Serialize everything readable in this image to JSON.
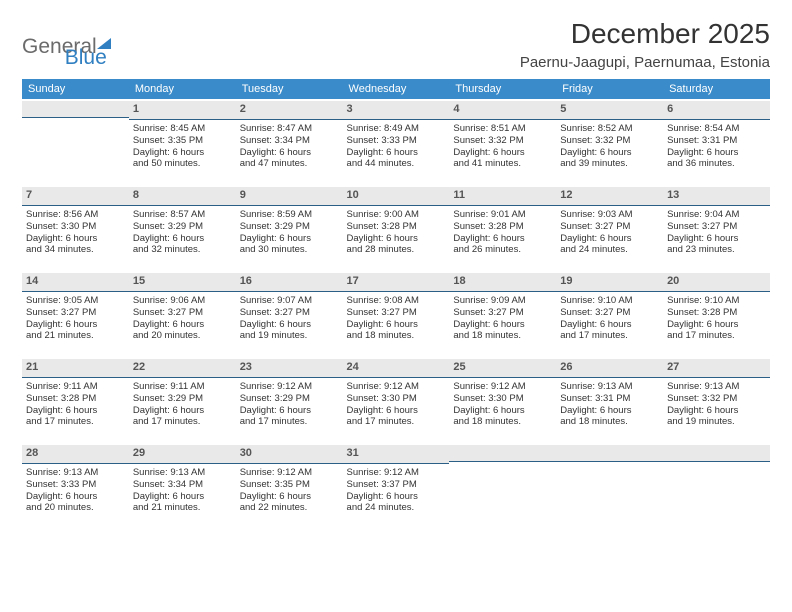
{
  "logo": {
    "part1": "General",
    "part2": "Blue"
  },
  "header": {
    "month": "December 2025",
    "location": "Paernu-Jaagupi, Paernumaa, Estonia"
  },
  "columns": [
    "Sunday",
    "Monday",
    "Tuesday",
    "Wednesday",
    "Thursday",
    "Friday",
    "Saturday"
  ],
  "colors": {
    "header_bg": "#3a8bc9",
    "header_text": "#ffffff",
    "daynum_bg": "#e9e9e9",
    "daynum_border": "#2b5f86",
    "logo_gray": "#6b6b6b",
    "logo_blue": "#2f7fc1",
    "text": "#333333",
    "bg": "#ffffff"
  },
  "weeks": [
    [
      {
        "empty": true
      },
      {
        "num": "1",
        "sunrise": "Sunrise: 8:45 AM",
        "sunset": "Sunset: 3:35 PM",
        "day1": "Daylight: 6 hours",
        "day2": "and 50 minutes."
      },
      {
        "num": "2",
        "sunrise": "Sunrise: 8:47 AM",
        "sunset": "Sunset: 3:34 PM",
        "day1": "Daylight: 6 hours",
        "day2": "and 47 minutes."
      },
      {
        "num": "3",
        "sunrise": "Sunrise: 8:49 AM",
        "sunset": "Sunset: 3:33 PM",
        "day1": "Daylight: 6 hours",
        "day2": "and 44 minutes."
      },
      {
        "num": "4",
        "sunrise": "Sunrise: 8:51 AM",
        "sunset": "Sunset: 3:32 PM",
        "day1": "Daylight: 6 hours",
        "day2": "and 41 minutes."
      },
      {
        "num": "5",
        "sunrise": "Sunrise: 8:52 AM",
        "sunset": "Sunset: 3:32 PM",
        "day1": "Daylight: 6 hours",
        "day2": "and 39 minutes."
      },
      {
        "num": "6",
        "sunrise": "Sunrise: 8:54 AM",
        "sunset": "Sunset: 3:31 PM",
        "day1": "Daylight: 6 hours",
        "day2": "and 36 minutes."
      }
    ],
    [
      {
        "num": "7",
        "sunrise": "Sunrise: 8:56 AM",
        "sunset": "Sunset: 3:30 PM",
        "day1": "Daylight: 6 hours",
        "day2": "and 34 minutes."
      },
      {
        "num": "8",
        "sunrise": "Sunrise: 8:57 AM",
        "sunset": "Sunset: 3:29 PM",
        "day1": "Daylight: 6 hours",
        "day2": "and 32 minutes."
      },
      {
        "num": "9",
        "sunrise": "Sunrise: 8:59 AM",
        "sunset": "Sunset: 3:29 PM",
        "day1": "Daylight: 6 hours",
        "day2": "and 30 minutes."
      },
      {
        "num": "10",
        "sunrise": "Sunrise: 9:00 AM",
        "sunset": "Sunset: 3:28 PM",
        "day1": "Daylight: 6 hours",
        "day2": "and 28 minutes."
      },
      {
        "num": "11",
        "sunrise": "Sunrise: 9:01 AM",
        "sunset": "Sunset: 3:28 PM",
        "day1": "Daylight: 6 hours",
        "day2": "and 26 minutes."
      },
      {
        "num": "12",
        "sunrise": "Sunrise: 9:03 AM",
        "sunset": "Sunset: 3:27 PM",
        "day1": "Daylight: 6 hours",
        "day2": "and 24 minutes."
      },
      {
        "num": "13",
        "sunrise": "Sunrise: 9:04 AM",
        "sunset": "Sunset: 3:27 PM",
        "day1": "Daylight: 6 hours",
        "day2": "and 23 minutes."
      }
    ],
    [
      {
        "num": "14",
        "sunrise": "Sunrise: 9:05 AM",
        "sunset": "Sunset: 3:27 PM",
        "day1": "Daylight: 6 hours",
        "day2": "and 21 minutes."
      },
      {
        "num": "15",
        "sunrise": "Sunrise: 9:06 AM",
        "sunset": "Sunset: 3:27 PM",
        "day1": "Daylight: 6 hours",
        "day2": "and 20 minutes."
      },
      {
        "num": "16",
        "sunrise": "Sunrise: 9:07 AM",
        "sunset": "Sunset: 3:27 PM",
        "day1": "Daylight: 6 hours",
        "day2": "and 19 minutes."
      },
      {
        "num": "17",
        "sunrise": "Sunrise: 9:08 AM",
        "sunset": "Sunset: 3:27 PM",
        "day1": "Daylight: 6 hours",
        "day2": "and 18 minutes."
      },
      {
        "num": "18",
        "sunrise": "Sunrise: 9:09 AM",
        "sunset": "Sunset: 3:27 PM",
        "day1": "Daylight: 6 hours",
        "day2": "and 18 minutes."
      },
      {
        "num": "19",
        "sunrise": "Sunrise: 9:10 AM",
        "sunset": "Sunset: 3:27 PM",
        "day1": "Daylight: 6 hours",
        "day2": "and 17 minutes."
      },
      {
        "num": "20",
        "sunrise": "Sunrise: 9:10 AM",
        "sunset": "Sunset: 3:28 PM",
        "day1": "Daylight: 6 hours",
        "day2": "and 17 minutes."
      }
    ],
    [
      {
        "num": "21",
        "sunrise": "Sunrise: 9:11 AM",
        "sunset": "Sunset: 3:28 PM",
        "day1": "Daylight: 6 hours",
        "day2": "and 17 minutes."
      },
      {
        "num": "22",
        "sunrise": "Sunrise: 9:11 AM",
        "sunset": "Sunset: 3:29 PM",
        "day1": "Daylight: 6 hours",
        "day2": "and 17 minutes."
      },
      {
        "num": "23",
        "sunrise": "Sunrise: 9:12 AM",
        "sunset": "Sunset: 3:29 PM",
        "day1": "Daylight: 6 hours",
        "day2": "and 17 minutes."
      },
      {
        "num": "24",
        "sunrise": "Sunrise: 9:12 AM",
        "sunset": "Sunset: 3:30 PM",
        "day1": "Daylight: 6 hours",
        "day2": "and 17 minutes."
      },
      {
        "num": "25",
        "sunrise": "Sunrise: 9:12 AM",
        "sunset": "Sunset: 3:30 PM",
        "day1": "Daylight: 6 hours",
        "day2": "and 18 minutes."
      },
      {
        "num": "26",
        "sunrise": "Sunrise: 9:13 AM",
        "sunset": "Sunset: 3:31 PM",
        "day1": "Daylight: 6 hours",
        "day2": "and 18 minutes."
      },
      {
        "num": "27",
        "sunrise": "Sunrise: 9:13 AM",
        "sunset": "Sunset: 3:32 PM",
        "day1": "Daylight: 6 hours",
        "day2": "and 19 minutes."
      }
    ],
    [
      {
        "num": "28",
        "sunrise": "Sunrise: 9:13 AM",
        "sunset": "Sunset: 3:33 PM",
        "day1": "Daylight: 6 hours",
        "day2": "and 20 minutes."
      },
      {
        "num": "29",
        "sunrise": "Sunrise: 9:13 AM",
        "sunset": "Sunset: 3:34 PM",
        "day1": "Daylight: 6 hours",
        "day2": "and 21 minutes."
      },
      {
        "num": "30",
        "sunrise": "Sunrise: 9:12 AM",
        "sunset": "Sunset: 3:35 PM",
        "day1": "Daylight: 6 hours",
        "day2": "and 22 minutes."
      },
      {
        "num": "31",
        "sunrise": "Sunrise: 9:12 AM",
        "sunset": "Sunset: 3:37 PM",
        "day1": "Daylight: 6 hours",
        "day2": "and 24 minutes."
      },
      {
        "empty": true
      },
      {
        "empty": true
      },
      {
        "empty": true
      }
    ]
  ]
}
